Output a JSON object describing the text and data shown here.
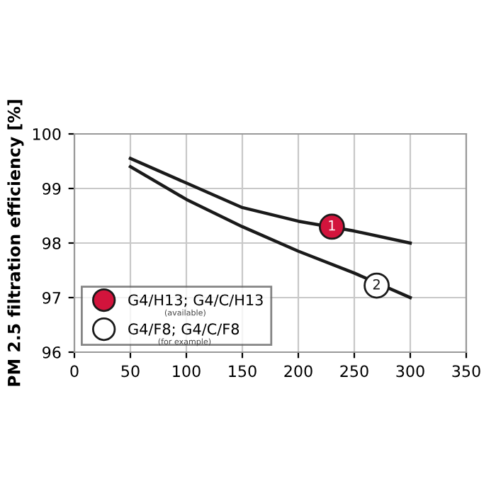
{
  "chart_data": {
    "type": "line",
    "ylabel": "PM 2.5 filtration efficiency [%]",
    "xlim": [
      0,
      350
    ],
    "xticks": [
      0,
      50,
      100,
      150,
      200,
      250,
      300,
      350
    ],
    "ylim": [
      96,
      100
    ],
    "yticks": [
      96,
      97,
      98,
      99,
      100
    ],
    "grid": true,
    "legend": "bottom left",
    "line_style": "solid",
    "series": [
      {
        "color": "#1a1a1a",
        "x": [
          50,
          100,
          150,
          200,
          250,
          300
        ],
        "values": [
          99.55,
          99.1,
          98.65,
          98.4,
          98.22,
          98.0
        ]
      },
      {
        "color": "#1a1a1a",
        "x": [
          50,
          100,
          150,
          200,
          250,
          300
        ],
        "values": [
          99.4,
          98.8,
          98.3,
          97.85,
          97.45,
          97.0
        ]
      },
      {
        "type": "scatter",
        "name": "G4/H13; G4/C/H13",
        "color": "#d2143c",
        "marker": "circle",
        "x": [
          230
        ],
        "values": [
          98.3
        ]
      },
      {
        "type": "scatter",
        "name": "G4/F8; G4/C/F8",
        "color": "#ffffff",
        "marker": "circle",
        "x": [
          270
        ],
        "values": [
          97.22
        ]
      }
    ],
    "annotations": [
      {
        "text": "1",
        "x": 230,
        "y": 98.3
      },
      {
        "text": "2",
        "x": 270,
        "y": 97.22
      },
      "(available)",
      "(for example)"
    ]
  }
}
